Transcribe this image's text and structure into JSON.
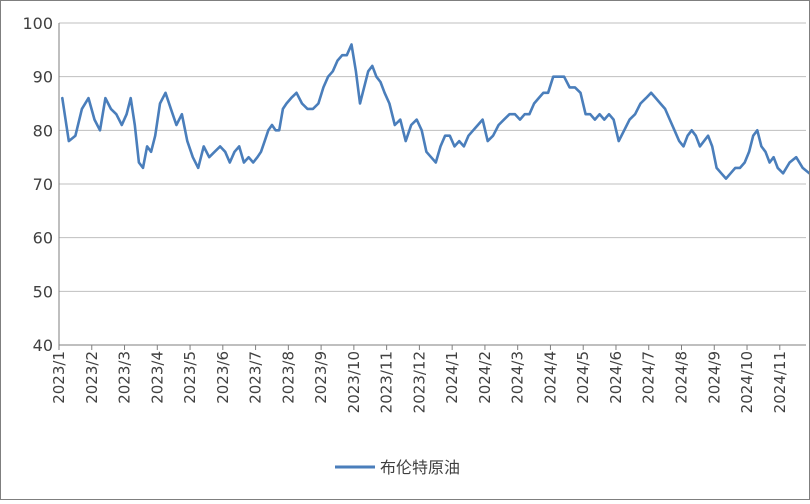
{
  "chart_data": {
    "type": "line",
    "title": "",
    "xlabel": "",
    "ylabel": "",
    "ylim": [
      40,
      100
    ],
    "y_ticks": [
      40,
      50,
      60,
      70,
      80,
      90,
      100
    ],
    "x_ticks": [
      "2023/1",
      "2023/2",
      "2023/3",
      "2023/4",
      "2023/5",
      "2023/6",
      "2023/7",
      "2023/8",
      "2023/9",
      "2023/10",
      "2023/11",
      "2023/12",
      "2024/1",
      "2024/2",
      "2024/3",
      "2024/4",
      "2024/5",
      "2024/6",
      "2024/7",
      "2024/8",
      "2024/9",
      "2024/10",
      "2024/11"
    ],
    "grid": "horizontal",
    "legend": "bottom",
    "colors": {
      "series": "#4a7ebb",
      "grid": "#bfbfbf",
      "axis": "#7f7f7f"
    },
    "series": [
      {
        "name": "布伦特原油",
        "points": [
          [
            "2023/1",
            86
          ],
          [
            "2023/1",
            78
          ],
          [
            "2023/1",
            79
          ],
          [
            "2023/1",
            84
          ],
          [
            "2023/1",
            86
          ],
          [
            "2023/2",
            82
          ],
          [
            "2023/2",
            80
          ],
          [
            "2023/2",
            86
          ],
          [
            "2023/2",
            84
          ],
          [
            "2023/2",
            83
          ],
          [
            "2023/2",
            81
          ],
          [
            "2023/3",
            83
          ],
          [
            "2023/3",
            86
          ],
          [
            "2023/3",
            81
          ],
          [
            "2023/3",
            74
          ],
          [
            "2023/3",
            73
          ],
          [
            "2023/3",
            77
          ],
          [
            "2023/3",
            76
          ],
          [
            "2023/3",
            79
          ],
          [
            "2023/4",
            85
          ],
          [
            "2023/4",
            87
          ],
          [
            "2023/4",
            84
          ],
          [
            "2023/4",
            81
          ],
          [
            "2023/4",
            83
          ],
          [
            "2023/4",
            78
          ],
          [
            "2023/5",
            75
          ],
          [
            "2023/5",
            73
          ],
          [
            "2023/5",
            77
          ],
          [
            "2023/5",
            75
          ],
          [
            "2023/5",
            76
          ],
          [
            "2023/5",
            77
          ],
          [
            "2023/6",
            76
          ],
          [
            "2023/6",
            74
          ],
          [
            "2023/6",
            76
          ],
          [
            "2023/6",
            77
          ],
          [
            "2023/6",
            74
          ],
          [
            "2023/6",
            75
          ],
          [
            "2023/6",
            74
          ],
          [
            "2023/7",
            75
          ],
          [
            "2023/7",
            76
          ],
          [
            "2023/7",
            78
          ],
          [
            "2023/7",
            80
          ],
          [
            "2023/7",
            81
          ],
          [
            "2023/7",
            80
          ],
          [
            "2023/7",
            80
          ],
          [
            "2023/7",
            84
          ],
          [
            "2023/7",
            85
          ],
          [
            "2023/8",
            86
          ],
          [
            "2023/8",
            87
          ],
          [
            "2023/8",
            85
          ],
          [
            "2023/8",
            84
          ],
          [
            "2023/8",
            84
          ],
          [
            "2023/8",
            85
          ],
          [
            "2023/9",
            88
          ],
          [
            "2023/9",
            90
          ],
          [
            "2023/9",
            91
          ],
          [
            "2023/9",
            93
          ],
          [
            "2023/9",
            94
          ],
          [
            "2023/9",
            94
          ],
          [
            "2023/9",
            96
          ],
          [
            "2023/10",
            91
          ],
          [
            "2023/10",
            85
          ],
          [
            "2023/10",
            88
          ],
          [
            "2023/10",
            91
          ],
          [
            "2023/10",
            92
          ],
          [
            "2023/10",
            90
          ],
          [
            "2023/10",
            89
          ],
          [
            "2023/10",
            87
          ],
          [
            "2023/11",
            85
          ],
          [
            "2023/11",
            81
          ],
          [
            "2023/11",
            82
          ],
          [
            "2023/11",
            78
          ],
          [
            "2023/11",
            81
          ],
          [
            "2023/11",
            82
          ],
          [
            "2023/12",
            80
          ],
          [
            "2023/12",
            76
          ],
          [
            "2023/12",
            75
          ],
          [
            "2023/12",
            74
          ],
          [
            "2023/12",
            77
          ],
          [
            "2023/12",
            79
          ],
          [
            "2023/12",
            79
          ],
          [
            "2024/1",
            77
          ],
          [
            "2024/1",
            78
          ],
          [
            "2024/1",
            77
          ],
          [
            "2024/1",
            79
          ],
          [
            "2024/1",
            80
          ],
          [
            "2024/1",
            81
          ],
          [
            "2024/1",
            82
          ],
          [
            "2024/2",
            78
          ],
          [
            "2024/2",
            79
          ],
          [
            "2024/2",
            81
          ],
          [
            "2024/2",
            82
          ],
          [
            "2024/2",
            83
          ],
          [
            "2024/2",
            83
          ],
          [
            "2024/3",
            82
          ],
          [
            "2024/3",
            83
          ],
          [
            "2024/3",
            83
          ],
          [
            "2024/3",
            85
          ],
          [
            "2024/3",
            86
          ],
          [
            "2024/3",
            87
          ],
          [
            "2024/3",
            87
          ],
          [
            "2024/4",
            90
          ],
          [
            "2024/4",
            90
          ],
          [
            "2024/4",
            90
          ],
          [
            "2024/4",
            88
          ],
          [
            "2024/4",
            88
          ],
          [
            "2024/4",
            87
          ],
          [
            "2024/5",
            83
          ],
          [
            "2024/5",
            83
          ],
          [
            "2024/5",
            82
          ],
          [
            "2024/5",
            83
          ],
          [
            "2024/5",
            82
          ],
          [
            "2024/5",
            83
          ],
          [
            "2024/5",
            82
          ],
          [
            "2024/6",
            78
          ],
          [
            "2024/6",
            80
          ],
          [
            "2024/6",
            82
          ],
          [
            "2024/6",
            83
          ],
          [
            "2024/6",
            85
          ],
          [
            "2024/6",
            86
          ],
          [
            "2024/7",
            87
          ],
          [
            "2024/7",
            86
          ],
          [
            "2024/7",
            85
          ],
          [
            "2024/7",
            84
          ],
          [
            "2024/7",
            82
          ],
          [
            "2024/7",
            80
          ],
          [
            "2024/7",
            78
          ],
          [
            "2024/8",
            77
          ],
          [
            "2024/8",
            79
          ],
          [
            "2024/8",
            80
          ],
          [
            "2024/8",
            79
          ],
          [
            "2024/8",
            77
          ],
          [
            "2024/8",
            78
          ],
          [
            "2024/8",
            79
          ],
          [
            "2024/8",
            77
          ],
          [
            "2024/9",
            73
          ],
          [
            "2024/9",
            72
          ],
          [
            "2024/9",
            71
          ],
          [
            "2024/9",
            72
          ],
          [
            "2024/9",
            73
          ],
          [
            "2024/9",
            73
          ],
          [
            "2024/9",
            74
          ],
          [
            "2024/10",
            76
          ],
          [
            "2024/10",
            79
          ],
          [
            "2024/10",
            80
          ],
          [
            "2024/10",
            77
          ],
          [
            "2024/10",
            76
          ],
          [
            "2024/10",
            74
          ],
          [
            "2024/10",
            75
          ],
          [
            "2024/10",
            73
          ],
          [
            "2024/11",
            72
          ],
          [
            "2024/11",
            74
          ],
          [
            "2024/11",
            75
          ],
          [
            "2024/11",
            73
          ],
          [
            "2024/11",
            72
          ]
        ]
      }
    ]
  }
}
